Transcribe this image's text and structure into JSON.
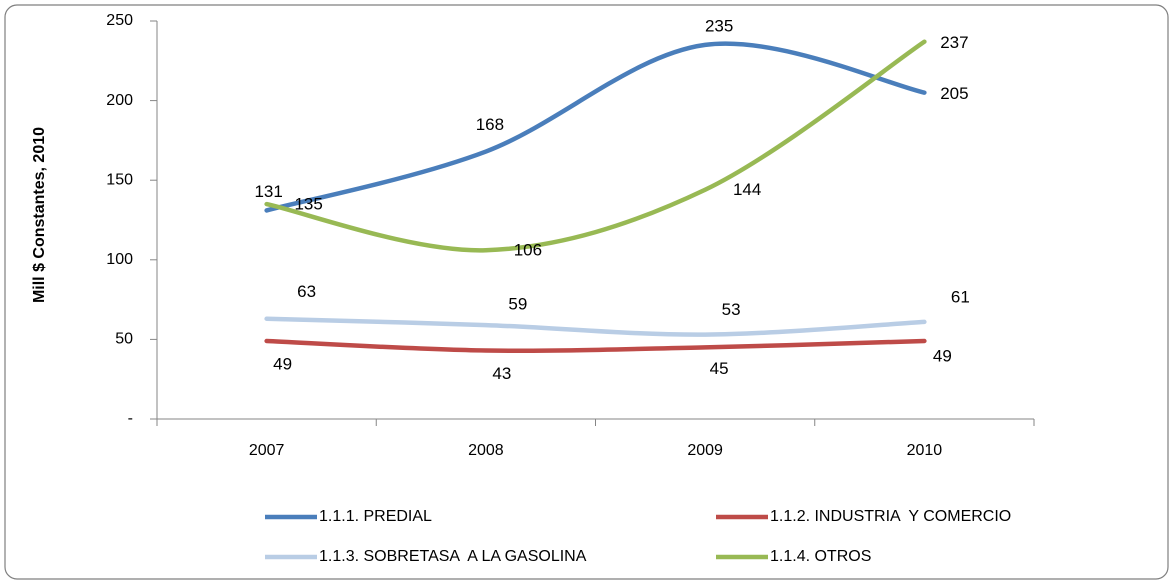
{
  "chart_data": {
    "type": "line",
    "y_axis_label": "Mill $ Constantes, 2010",
    "categories": [
      "2007",
      "2008",
      "2009",
      "2010"
    ],
    "series": [
      {
        "name": "1.1.1. PREDIAL",
        "color": "#4a7ebb",
        "values": [
          131,
          168,
          235,
          205
        ]
      },
      {
        "name": "1.1.2. INDUSTRIA  Y COMERCIO",
        "color": "#be4b48",
        "values": [
          49,
          43,
          45,
          49
        ]
      },
      {
        "name": "1.1.3. SOBRETASA  A LA GASOLINA",
        "color": "#b9cde5",
        "values": [
          63,
          59,
          53,
          61
        ]
      },
      {
        "name": "1.1.4. OTROS",
        "color": "#98b954",
        "values": [
          135,
          106,
          144,
          237
        ]
      }
    ],
    "ylim": [
      0,
      250
    ],
    "yticks": [
      {
        "value": 0,
        "label": "-"
      },
      50,
      100,
      150,
      200,
      250
    ],
    "smooth": true,
    "legend": "bottom"
  }
}
